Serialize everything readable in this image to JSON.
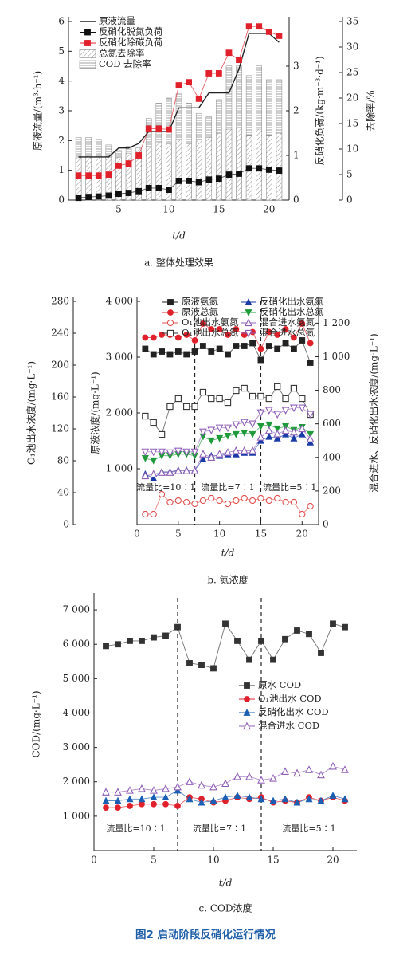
{
  "caption": "图2 启动阶段反硝化运行情况",
  "chart_data": [
    {
      "type": "combo",
      "caption": "a. 整体处理效果",
      "xlabel": "t/d",
      "ylabel": "原液流量/(m³·h⁻¹)",
      "y2label": "反硝化负荷/(kg·m⁻³·d⁻¹)",
      "y3label": "去除率/%",
      "x": [
        1,
        2,
        3,
        4,
        5,
        6,
        7,
        8,
        9,
        10,
        11,
        12,
        13,
        14,
        15,
        16,
        17,
        18,
        19,
        20,
        21
      ],
      "xlim": [
        0,
        22
      ],
      "xticks": [
        5,
        10,
        15,
        20
      ],
      "ylim": [
        0,
        6
      ],
      "yticks": [
        0,
        1,
        2,
        3,
        4,
        5,
        6
      ],
      "y2lim": [
        0,
        4
      ],
      "y2ticks": [
        0,
        1,
        2,
        3
      ],
      "y3lim": [
        0,
        35
      ],
      "y3ticks": [
        0,
        5,
        10,
        15,
        20,
        25,
        30,
        35
      ],
      "series": [
        {
          "name": "原液流量",
          "type": "line",
          "color": "#222222",
          "values": [
            1.45,
            1.45,
            1.45,
            1.45,
            1.75,
            1.75,
            1.9,
            2.3,
            2.3,
            2.3,
            3.1,
            3.1,
            3.1,
            3.6,
            3.6,
            3.6,
            4.4,
            5.6,
            5.6,
            5.6,
            5.3
          ]
        },
        {
          "name": "反硝化脱氮负荷",
          "type": "line",
          "marker": "square",
          "axis": "y2",
          "color": "#111111",
          "values": [
            0.05,
            0.07,
            0.08,
            0.1,
            0.14,
            0.16,
            0.2,
            0.27,
            0.27,
            0.23,
            0.43,
            0.43,
            0.4,
            0.46,
            0.48,
            0.57,
            0.59,
            0.71,
            0.71,
            0.68,
            0.66
          ]
        },
        {
          "name": "反硝化除碳负荷",
          "type": "line",
          "marker": "square",
          "axis": "y2",
          "color": "#e0202a",
          "values": [
            0.55,
            0.55,
            0.55,
            0.57,
            0.77,
            0.82,
            1.0,
            1.6,
            1.6,
            1.58,
            2.57,
            2.64,
            2.27,
            2.84,
            2.84,
            3.3,
            3.14,
            3.89,
            3.89,
            3.77,
            3.68
          ]
        },
        {
          "name": "总氮去除率",
          "type": "bar",
          "pattern": "diagonal",
          "axis": "y3",
          "color": "#888888",
          "values": [
            8.3,
            8.6,
            8.6,
            8.4,
            8.4,
            9.2,
            10.2,
            10.5,
            11.4,
            11,
            11.9,
            11,
            11.9,
            12.3,
            13.1,
            13.9,
            14.2,
            12.7,
            13.9,
            12.7,
            13.1
          ]
        },
        {
          "name": "COD 去除率",
          "type": "bar",
          "pattern": "horizontal",
          "axis": "y3",
          "color": "#888888",
          "values": [
            12.3,
            12.3,
            11.9,
            10.8,
            9.7,
            10.5,
            9.4,
            16,
            19,
            20,
            20.8,
            19,
            17,
            16.3,
            19.7,
            26.3,
            26.3,
            24.4,
            26.3,
            23.6,
            23.6
          ]
        }
      ]
    },
    {
      "type": "line",
      "caption": "b. 氮浓度",
      "xlabel": "t/d",
      "ylabel": "原液浓度/(mg·L⁻¹)",
      "y2label": "混合进水、反硝化出水浓度/(mg·L⁻¹)",
      "y3label": "O₁池出水浓度/(mg·L⁻¹)",
      "x": [
        1,
        2,
        3,
        4,
        5,
        6,
        7,
        8,
        9,
        10,
        11,
        12,
        13,
        14,
        15,
        16,
        17,
        18,
        19,
        20,
        21
      ],
      "xlim": [
        0,
        22
      ],
      "xticks": [
        0,
        5,
        10,
        15,
        20
      ],
      "ylim": [
        0,
        4000
      ],
      "yticks": [
        {
          "value": 1000,
          "label": "1 000"
        },
        {
          "value": 2000,
          "label": "2 000"
        },
        {
          "value": 3000,
          "label": "3 000"
        },
        {
          "value": 4000,
          "label": "4 000"
        }
      ],
      "y2lim": [
        0,
        1330
      ],
      "y2ticks": [
        0,
        200,
        400,
        600,
        800,
        {
          "value": 1000,
          "label": "1 000"
        },
        {
          "value": 1200,
          "label": "1 200"
        }
      ],
      "y3lim": [
        0,
        280
      ],
      "y3ticks": [
        0,
        40,
        80,
        120,
        160,
        200,
        240,
        280
      ],
      "vlines": [
        7,
        15
      ],
      "annotations": [
        "流量比=10∶1",
        "流量比=7∶1",
        "流量比=5∶1"
      ],
      "series": [
        {
          "name": "原液氨氮",
          "marker": "square",
          "color": "#222222",
          "values": [
            3150,
            3050,
            3100,
            3050,
            3100,
            3050,
            3100,
            3200,
            3100,
            3150,
            3050,
            3200,
            3200,
            3250,
            2950,
            3200,
            3150,
            3250,
            3150,
            3300,
            2900
          ]
        },
        {
          "name": "原液总氮",
          "marker": "circle",
          "color": "#e0202a",
          "values": [
            3350,
            3350,
            3400,
            3400,
            3350,
            3400,
            3300,
            3600,
            3500,
            3500,
            3400,
            3500,
            3400,
            3450,
            3150,
            3450,
            3400,
            3500,
            3350,
            3600,
            3250
          ]
        },
        {
          "name": "O₁池出水氨氮",
          "marker": "circle-open",
          "axis": "y3",
          "color": "#e05050",
          "values": [
            13,
            13,
            38,
            28,
            30,
            28,
            26,
            30,
            33,
            30,
            26,
            30,
            33,
            30,
            33,
            30,
            33,
            28,
            28,
            13,
            23
          ]
        },
        {
          "name": "O₁池出水总氮",
          "marker": "square-open",
          "axis": "y3",
          "color": "#333333",
          "values": [
            136,
            128,
            113,
            148,
            158,
            148,
            148,
            166,
            158,
            158,
            153,
            168,
            171,
            161,
            161,
            158,
            173,
            158,
            171,
            158,
            138
          ]
        },
        {
          "name": "反硝化出水氨氮",
          "marker": "triangle",
          "axis": "y2",
          "color": "#1a3aa8",
          "values": [
            300,
            276,
            314,
            314,
            324,
            324,
            324,
            390,
            410,
            410,
            419,
            419,
            428,
            428,
            500,
            524,
            514,
            538,
            514,
            538,
            490
          ]
        },
        {
          "name": "反硝化出水总氮",
          "marker": "triangle-down",
          "axis": "y2",
          "color": "#1e9a3a",
          "values": [
            395,
            381,
            410,
            410,
            419,
            419,
            410,
            524,
            500,
            514,
            528,
            538,
            547,
            538,
            585,
            595,
            571,
            585,
            562,
            580,
            538
          ]
        },
        {
          "name": "混合进水氨氮",
          "marker": "triangle-open",
          "axis": "y2",
          "color": "#9060b8",
          "values": [
            290,
            300,
            310,
            310,
            320,
            320,
            320,
            420,
            400,
            420,
            430,
            440,
            440,
            440,
            520,
            560,
            540,
            560,
            550,
            570,
            510
          ]
        },
        {
          "name": "混合进水总氮",
          "marker": "triangle-down-open",
          "axis": "y2",
          "color": "#9060b8",
          "values": [
            433,
            433,
            433,
            428,
            438,
            433,
            433,
            552,
            562,
            576,
            576,
            595,
            609,
            600,
            666,
            681,
            657,
            681,
            695,
            695,
            657
          ]
        }
      ]
    },
    {
      "type": "line",
      "caption": "c. COD浓度",
      "xlabel": "t/d",
      "ylabel": "COD/(mg·L⁻¹)",
      "x": [
        1,
        2,
        3,
        4,
        5,
        6,
        7,
        8,
        9,
        10,
        11,
        12,
        13,
        14,
        15,
        16,
        17,
        18,
        19,
        20,
        21
      ],
      "xlim": [
        0,
        22
      ],
      "xticks": [
        0,
        5,
        10,
        15,
        20
      ],
      "ylim": [
        0,
        7350
      ],
      "yticks": [
        {
          "value": 1000,
          "label": "1 000"
        },
        {
          "value": 2000,
          "label": "2 000"
        },
        {
          "value": 3000,
          "label": "3 000"
        },
        {
          "value": 4000,
          "label": "4 000"
        },
        {
          "value": 5000,
          "label": "5 000"
        },
        {
          "value": 6000,
          "label": "6 000"
        },
        {
          "value": 7000,
          "label": "7 000"
        }
      ],
      "vlines": [
        7,
        14
      ],
      "annotations": [
        "流量比=10∶1",
        "流量比=7∶1",
        "流量比=5∶1"
      ],
      "series": [
        {
          "name": "原水 COD",
          "marker": "square",
          "color": "#333333",
          "values": [
            5950,
            6000,
            6100,
            6100,
            6200,
            6250,
            6500,
            5450,
            5400,
            5300,
            6600,
            6100,
            5550,
            6100,
            5550,
            6150,
            6400,
            6300,
            5750,
            6600,
            6500
          ]
        },
        {
          "name": "O₁池出水 COD",
          "marker": "circle",
          "color": "#e0202a",
          "values": [
            1250,
            1250,
            1300,
            1350,
            1350,
            1350,
            1300,
            1550,
            1500,
            1400,
            1450,
            1550,
            1500,
            1550,
            1400,
            1450,
            1400,
            1550,
            1450,
            1550,
            1450
          ]
        },
        {
          "name": "反硝化出水 COD",
          "marker": "triangle",
          "color": "#1a5fb4",
          "values": [
            1450,
            1450,
            1500,
            1500,
            1550,
            1550,
            1750,
            1500,
            1400,
            1450,
            1550,
            1600,
            1550,
            1500,
            1450,
            1500,
            1400,
            1500,
            1450,
            1600,
            1500
          ]
        },
        {
          "name": "混合进水 COD",
          "marker": "triangle-open",
          "color": "#9060b8",
          "values": [
            1700,
            1700,
            1750,
            1800,
            1750,
            1800,
            1850,
            2000,
            1900,
            1850,
            1950,
            2150,
            2150,
            2050,
            2100,
            2300,
            2250,
            2350,
            2200,
            2450,
            2350
          ]
        }
      ]
    }
  ]
}
